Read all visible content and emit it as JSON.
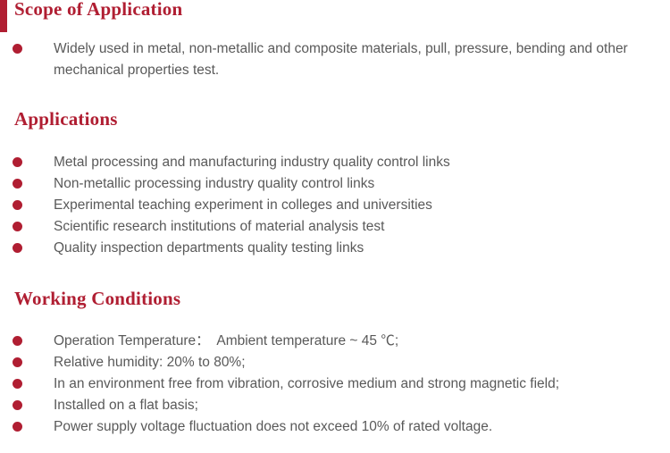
{
  "colors": {
    "accent": "#B01E32",
    "body_text": "#595959",
    "background": "#FFFFFF"
  },
  "sections": [
    {
      "heading": "Scope of Application",
      "items": [
        "Widely used in metal, non-metallic and composite materials, pull, pressure, bending and other mechanical properties test."
      ]
    },
    {
      "heading": "Applications",
      "items": [
        "Metal processing and manufacturing industry quality control links",
        "Non-metallic processing industry quality control links",
        "Experimental teaching experiment in colleges and universities",
        "Scientific research institutions of material analysis test",
        "Quality inspection departments quality testing links"
      ]
    },
    {
      "heading": "Working Conditions",
      "items": [
        "Operation Temperature：  Ambient temperature ~ 45 ℃;",
        "Relative humidity: 20% to 80%;",
        "In an environment free from vibration, corrosive medium and strong magnetic field;",
        "Installed on a flat basis;",
        "Power supply voltage fluctuation does not exceed 10% of rated voltage."
      ]
    }
  ]
}
